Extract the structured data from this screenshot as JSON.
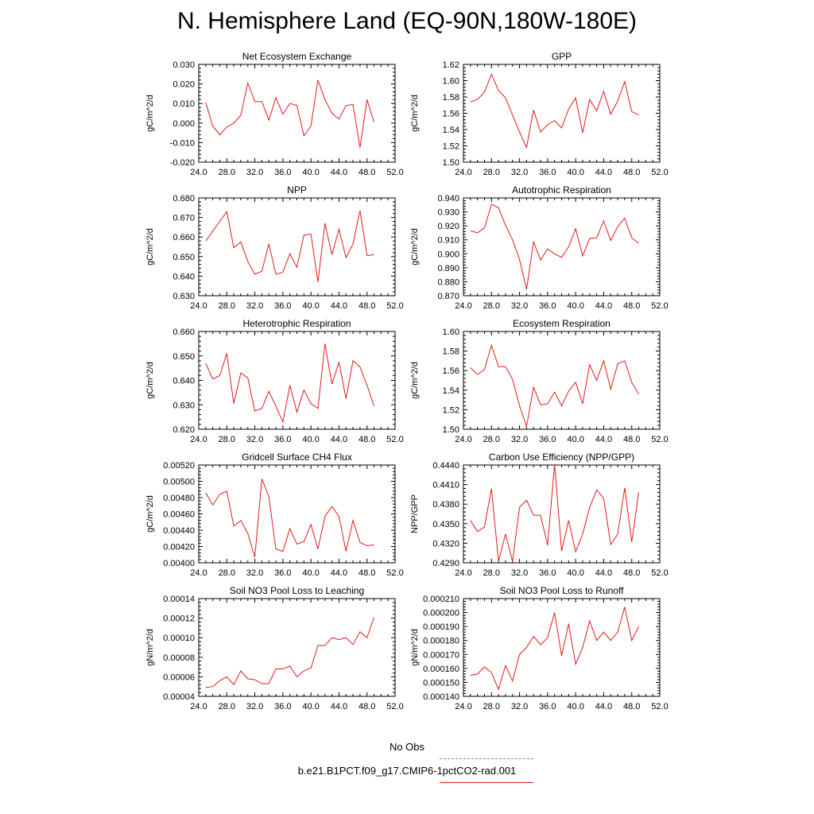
{
  "page": {
    "title": "N. Hemisphere Land (EQ-90N,180W-180E)"
  },
  "legend": {
    "obs_label": "No Obs",
    "obs_color": "#7777dd",
    "model_label": "b.e21.B1PCT.f09_g17.CMIP6-1pctCO2-rad.001",
    "model_color": "#e21a1a"
  },
  "chart_data": [
    {
      "type": "line",
      "title": "Net Ecosystem Exchange",
      "ylabel": "gC/m^2/d",
      "xlim": [
        24,
        52
      ],
      "ylim": [
        -0.02,
        0.03
      ],
      "yticks": [
        -0.02,
        -0.01,
        0.0,
        0.01,
        0.02,
        0.03
      ],
      "ytick_labels": [
        "-0.020",
        "-0.010",
        "0.000",
        "0.010",
        "0.020",
        "0.030"
      ],
      "xticks": [
        24,
        28,
        32,
        36,
        40,
        44,
        48,
        52
      ],
      "xtick_labels": [
        "24.0",
        "28.0",
        "32.0",
        "36.0",
        "40.0",
        "44.0",
        "48.0",
        "52.0"
      ],
      "series": [
        {
          "x": [
            25,
            26,
            27,
            28,
            29,
            30,
            31,
            32,
            33,
            34,
            35,
            36,
            37,
            38,
            39,
            40,
            41,
            42,
            43,
            44,
            45,
            46,
            47,
            48,
            49
          ],
          "y": [
            0.0105,
            -0.0015,
            -0.006,
            -0.002,
            0.0,
            0.004,
            0.0205,
            0.011,
            0.011,
            0.0015,
            0.013,
            0.0045,
            0.01,
            0.009,
            -0.0065,
            -0.0015,
            0.022,
            0.012,
            0.005,
            0.002,
            0.009,
            0.0095,
            -0.0125,
            0.012,
            0.0005
          ]
        }
      ]
    },
    {
      "type": "line",
      "title": "GPP",
      "ylabel": "gC/m^2/d",
      "xlim": [
        24,
        52
      ],
      "ylim": [
        1.5,
        1.62
      ],
      "yticks": [
        1.5,
        1.52,
        1.54,
        1.56,
        1.58,
        1.6,
        1.62
      ],
      "ytick_labels": [
        "1.50",
        "1.52",
        "1.54",
        "1.56",
        "1.58",
        "1.60",
        "1.62"
      ],
      "xticks": [
        24,
        28,
        32,
        36,
        40,
        44,
        48,
        52
      ],
      "xtick_labels": [
        "24.0",
        "28.0",
        "32.0",
        "36.0",
        "40.0",
        "44.0",
        "48.0",
        "52.0"
      ],
      "series": [
        {
          "x": [
            25,
            26,
            27,
            28,
            29,
            30,
            31,
            32,
            33,
            34,
            35,
            36,
            37,
            38,
            39,
            40,
            41,
            42,
            43,
            44,
            45,
            46,
            47,
            48,
            49
          ],
          "y": [
            1.574,
            1.577,
            1.586,
            1.608,
            1.588,
            1.579,
            1.558,
            1.537,
            1.518,
            1.564,
            1.537,
            1.546,
            1.551,
            1.542,
            1.565,
            1.579,
            1.536,
            1.577,
            1.563,
            1.587,
            1.559,
            1.575,
            1.599,
            1.562,
            1.558
          ]
        }
      ]
    },
    {
      "type": "line",
      "title": "NPP",
      "ylabel": "gC/m^2/d",
      "xlim": [
        24,
        52
      ],
      "ylim": [
        0.63,
        0.68
      ],
      "yticks": [
        0.63,
        0.64,
        0.65,
        0.66,
        0.67,
        0.68
      ],
      "ytick_labels": [
        "0.630",
        "0.640",
        "0.650",
        "0.660",
        "0.670",
        "0.680"
      ],
      "xticks": [
        24,
        28,
        32,
        36,
        40,
        44,
        48,
        52
      ],
      "xtick_labels": [
        "24.0",
        "28.0",
        "32.0",
        "36.0",
        "40.0",
        "44.0",
        "48.0",
        "52.0"
      ],
      "series": [
        {
          "x": [
            25,
            26,
            27,
            28,
            29,
            30,
            31,
            32,
            33,
            34,
            35,
            36,
            37,
            38,
            39,
            40,
            41,
            42,
            43,
            44,
            45,
            46,
            47,
            48,
            49
          ],
          "y": [
            0.658,
            0.663,
            0.668,
            0.673,
            0.6545,
            0.6575,
            0.6475,
            0.641,
            0.6425,
            0.6565,
            0.641,
            0.642,
            0.6515,
            0.6445,
            0.661,
            0.6615,
            0.637,
            0.667,
            0.651,
            0.664,
            0.6495,
            0.6565,
            0.6735,
            0.6505,
            0.651
          ]
        }
      ]
    },
    {
      "type": "line",
      "title": "Autotrophic Respiration",
      "ylabel": "gC/m^2/d",
      "xlim": [
        24,
        52
      ],
      "ylim": [
        0.87,
        0.94
      ],
      "yticks": [
        0.87,
        0.88,
        0.89,
        0.9,
        0.91,
        0.92,
        0.93,
        0.94
      ],
      "ytick_labels": [
        "0.870",
        "0.880",
        "0.890",
        "0.900",
        "0.910",
        "0.920",
        "0.930",
        "0.940"
      ],
      "xticks": [
        24,
        28,
        32,
        36,
        40,
        44,
        48,
        52
      ],
      "xtick_labels": [
        "24.0",
        "28.0",
        "32.0",
        "36.0",
        "40.0",
        "44.0",
        "48.0",
        "52.0"
      ],
      "series": [
        {
          "x": [
            25,
            26,
            27,
            28,
            29,
            30,
            31,
            32,
            33,
            34,
            35,
            36,
            37,
            38,
            39,
            40,
            41,
            42,
            43,
            44,
            45,
            46,
            47,
            48,
            49
          ],
          "y": [
            0.9165,
            0.915,
            0.9185,
            0.9355,
            0.933,
            0.9205,
            0.91,
            0.896,
            0.8745,
            0.9085,
            0.8955,
            0.9035,
            0.9,
            0.8975,
            0.905,
            0.918,
            0.8985,
            0.911,
            0.9115,
            0.9235,
            0.9095,
            0.9195,
            0.9255,
            0.9115,
            0.9075
          ]
        }
      ]
    },
    {
      "type": "line",
      "title": "Heterotrophic Respiration",
      "ylabel": "gC/m^2/d",
      "xlim": [
        24,
        52
      ],
      "ylim": [
        0.62,
        0.66
      ],
      "yticks": [
        0.62,
        0.63,
        0.64,
        0.65,
        0.66
      ],
      "ytick_labels": [
        "0.620",
        "0.630",
        "0.640",
        "0.650",
        "0.660"
      ],
      "xticks": [
        24,
        28,
        32,
        36,
        40,
        44,
        48,
        52
      ],
      "xtick_labels": [
        "24.0",
        "28.0",
        "32.0",
        "36.0",
        "40.0",
        "44.0",
        "48.0",
        "52.0"
      ],
      "series": [
        {
          "x": [
            25,
            26,
            27,
            28,
            29,
            30,
            31,
            32,
            33,
            34,
            35,
            36,
            37,
            38,
            39,
            40,
            41,
            42,
            43,
            44,
            45,
            46,
            47,
            48,
            49
          ],
          "y": [
            0.647,
            0.6405,
            0.642,
            0.651,
            0.6305,
            0.643,
            0.641,
            0.6275,
            0.6285,
            0.6355,
            0.6295,
            0.623,
            0.638,
            0.627,
            0.636,
            0.6305,
            0.6285,
            0.655,
            0.6385,
            0.6475,
            0.6325,
            0.648,
            0.6455,
            0.638,
            0.6295
          ]
        }
      ]
    },
    {
      "type": "line",
      "title": "Ecosystem Respiration",
      "ylabel": "gC/m^2/d",
      "xlim": [
        24,
        52
      ],
      "ylim": [
        1.5,
        1.6
      ],
      "yticks": [
        1.5,
        1.52,
        1.54,
        1.56,
        1.58,
        1.6
      ],
      "ytick_labels": [
        "1.50",
        "1.52",
        "1.54",
        "1.56",
        "1.58",
        "1.60"
      ],
      "xticks": [
        24,
        28,
        32,
        36,
        40,
        44,
        48,
        52
      ],
      "xtick_labels": [
        "24.0",
        "28.0",
        "32.0",
        "36.0",
        "40.0",
        "44.0",
        "48.0",
        "52.0"
      ],
      "series": [
        {
          "x": [
            25,
            26,
            27,
            28,
            29,
            30,
            31,
            32,
            33,
            34,
            35,
            36,
            37,
            38,
            39,
            40,
            41,
            42,
            43,
            44,
            45,
            46,
            47,
            48,
            49
          ],
          "y": [
            1.563,
            1.556,
            1.561,
            1.586,
            1.564,
            1.564,
            1.551,
            1.524,
            1.503,
            1.543,
            1.525,
            1.526,
            1.538,
            1.524,
            1.539,
            1.548,
            1.526,
            1.566,
            1.55,
            1.57,
            1.541,
            1.567,
            1.57,
            1.548,
            1.536
          ]
        }
      ]
    },
    {
      "type": "line",
      "title": "Gridcell Surface CH4 Flux",
      "ylabel": "gC/m^2/d",
      "xlim": [
        24,
        52
      ],
      "ylim": [
        0.004,
        0.0052
      ],
      "yticks": [
        0.004,
        0.0042,
        0.0044,
        0.0046,
        0.0048,
        0.005,
        0.0052
      ],
      "ytick_labels": [
        "0.00400",
        "0.00420",
        "0.00440",
        "0.00460",
        "0.00480",
        "0.00500",
        "0.00520"
      ],
      "xticks": [
        24,
        28,
        32,
        36,
        40,
        44,
        48,
        52
      ],
      "xtick_labels": [
        "24.0",
        "28.0",
        "32.0",
        "36.0",
        "40.0",
        "44.0",
        "48.0",
        "52.0"
      ],
      "series": [
        {
          "x": [
            25,
            26,
            27,
            28,
            29,
            30,
            31,
            32,
            33,
            34,
            35,
            36,
            37,
            38,
            39,
            40,
            41,
            42,
            43,
            44,
            45,
            46,
            47,
            48,
            49
          ],
          "y": [
            0.00486,
            0.00471,
            0.00484,
            0.00488,
            0.00445,
            0.00452,
            0.00436,
            0.00407,
            0.00503,
            0.00481,
            0.00417,
            0.00414,
            0.00442,
            0.00423,
            0.00426,
            0.00447,
            0.00417,
            0.00457,
            0.00469,
            0.00457,
            0.00414,
            0.00452,
            0.00425,
            0.00421,
            0.00422
          ]
        }
      ]
    },
    {
      "type": "line",
      "title": "Carbon Use Efficiency (NPP/GPP)",
      "ylabel": "NPP/GPP",
      "xlim": [
        24,
        52
      ],
      "ylim": [
        0.429,
        0.444
      ],
      "yticks": [
        0.429,
        0.432,
        0.435,
        0.438,
        0.441,
        0.444
      ],
      "ytick_labels": [
        "0.4290",
        "0.4320",
        "0.4350",
        "0.4380",
        "0.4410",
        "0.4440"
      ],
      "xticks": [
        24,
        28,
        32,
        36,
        40,
        44,
        48,
        52
      ],
      "xtick_labels": [
        "24.0",
        "28.0",
        "32.0",
        "36.0",
        "40.0",
        "44.0",
        "48.0",
        "52.0"
      ],
      "series": [
        {
          "x": [
            25,
            26,
            27,
            28,
            29,
            30,
            31,
            32,
            33,
            34,
            35,
            36,
            37,
            38,
            39,
            40,
            41,
            42,
            43,
            44,
            45,
            46,
            47,
            48,
            49
          ],
          "y": [
            0.4355,
            0.4338,
            0.4345,
            0.4404,
            0.4292,
            0.4334,
            0.4292,
            0.4375,
            0.4386,
            0.4363,
            0.4363,
            0.4317,
            0.4441,
            0.4308,
            0.4355,
            0.4307,
            0.4334,
            0.4375,
            0.4402,
            0.4389,
            0.4318,
            0.4334,
            0.4405,
            0.4322,
            0.4398
          ]
        }
      ]
    },
    {
      "type": "line",
      "title": "Soil NO3 Pool Loss to Leaching",
      "ylabel": "gN/m^2/d",
      "xlim": [
        24,
        52
      ],
      "ylim": [
        4e-05,
        0.00014
      ],
      "yticks": [
        4e-05,
        6e-05,
        8e-05,
        0.0001,
        0.00012,
        0.00014
      ],
      "ytick_labels": [
        "0.00004",
        "0.00006",
        "0.00008",
        "0.00010",
        "0.00012",
        "0.00014"
      ],
      "xticks": [
        24,
        28,
        32,
        36,
        40,
        44,
        48,
        52
      ],
      "xtick_labels": [
        "24.0",
        "28.0",
        "32.0",
        "36.0",
        "40.0",
        "44.0",
        "48.0",
        "52.0"
      ],
      "series": [
        {
          "x": [
            25,
            26,
            27,
            28,
            29,
            30,
            31,
            32,
            33,
            34,
            35,
            36,
            37,
            38,
            39,
            40,
            41,
            42,
            43,
            44,
            45,
            46,
            47,
            48,
            49
          ],
          "y": [
            4.9e-05,
            5e-05,
            5.6e-05,
            6e-05,
            5.2e-05,
            6.6e-05,
            5.8e-05,
            5.7e-05,
            5.3e-05,
            5.3e-05,
            6.8e-05,
            6.8e-05,
            7.1e-05,
            6e-05,
            6.6e-05,
            6.9e-05,
            9.2e-05,
            9.2e-05,
            0.0001,
            9.8e-05,
            0.0001,
            9.3e-05,
            0.000106,
            0.0001,
            0.000121
          ]
        }
      ]
    },
    {
      "type": "line",
      "title": "Soil NO3 Pool Loss to Runoff",
      "ylabel": "gN/m^2/d",
      "xlim": [
        24,
        52
      ],
      "ylim": [
        0.00014,
        0.00021
      ],
      "yticks": [
        0.00014,
        0.00015,
        0.00016,
        0.00017,
        0.00018,
        0.00019,
        0.0002,
        0.00021
      ],
      "ytick_labels": [
        "0.000140",
        "0.000150",
        "0.000160",
        "0.000170",
        "0.000180",
        "0.000190",
        "0.000200",
        "0.000210"
      ],
      "xticks": [
        24,
        28,
        32,
        36,
        40,
        44,
        48,
        52
      ],
      "xtick_labels": [
        "24.0",
        "28.0",
        "32.0",
        "36.0",
        "40.0",
        "44.0",
        "48.0",
        "52.0"
      ],
      "series": [
        {
          "x": [
            25,
            26,
            27,
            28,
            29,
            30,
            31,
            32,
            33,
            34,
            35,
            36,
            37,
            38,
            39,
            40,
            41,
            42,
            43,
            44,
            45,
            46,
            47,
            48,
            49
          ],
          "y": [
            0.000155,
            0.000156,
            0.000161,
            0.000157,
            0.000145,
            0.000162,
            0.000151,
            0.00017,
            0.000175,
            0.000183,
            0.000177,
            0.000182,
            0.0002,
            0.000169,
            0.000192,
            0.000163,
            0.000175,
            0.000194,
            0.00018,
            0.000186,
            0.00018,
            0.000186,
            0.000204,
            0.00018,
            0.00019
          ]
        }
      ]
    }
  ]
}
